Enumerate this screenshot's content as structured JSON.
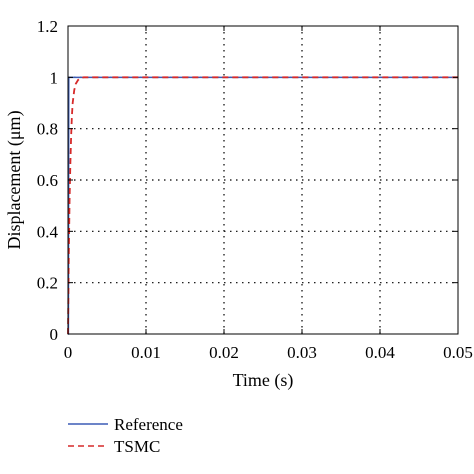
{
  "chart_data": {
    "type": "line",
    "xlabel": "Time (s)",
    "ylabel": "Displacement (μm)",
    "xlim": [
      0,
      0.05
    ],
    "ylim": [
      0,
      1.2
    ],
    "xticks": [
      0,
      0.01,
      0.02,
      0.03,
      0.04,
      0.05
    ],
    "xtick_labels": [
      "0",
      "0.01",
      "0.02",
      "0.03",
      "0.04",
      "0.05"
    ],
    "yticks": [
      0,
      0.2,
      0.4,
      0.6,
      0.8,
      1,
      1.2
    ],
    "ytick_labels": [
      "0",
      "0.2",
      "0.4",
      "0.6",
      "0.8",
      "1",
      "1.2"
    ],
    "grid": true,
    "legend_position": "bottom-left, below plot",
    "series": [
      {
        "name": "Reference",
        "color": "#3b5bb5",
        "style": "solid",
        "x": [
          0,
          5e-05,
          0.0001,
          0.05
        ],
        "y": [
          0,
          0,
          1,
          1
        ]
      },
      {
        "name": "TSMC",
        "color": "#d62a2a",
        "style": "dashed",
        "x": [
          0,
          0.0001,
          0.0002,
          0.0003,
          0.0004,
          0.0005,
          0.0006,
          0.0008,
          0.001,
          0.0013,
          0.0016,
          0.002,
          0.003,
          0.05
        ],
        "y": [
          0,
          0.3,
          0.52,
          0.66,
          0.77,
          0.85,
          0.9,
          0.95,
          0.975,
          0.99,
          0.997,
          1.0,
          1.0,
          1.0
        ]
      }
    ]
  }
}
